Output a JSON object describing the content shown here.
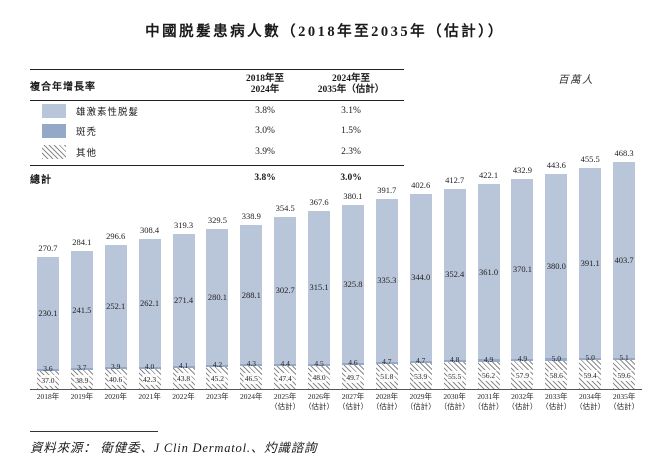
{
  "title": "中國脱髮患病人數（2018年至2035年（估計））",
  "unit_label": "百萬人",
  "colors": {
    "bar_light": "#b9c5d8",
    "bar_dark": "#94a8c7",
    "hatch_line": "#8a8a8a",
    "axis": "#555555"
  },
  "cagr_table": {
    "header": {
      "label": "複合年增長率",
      "col1": {
        "line1": "2018年至",
        "line2": "2024年"
      },
      "col2": {
        "line1": "2024年至",
        "line2": "2035年（估計）"
      }
    },
    "rows": [
      {
        "label": "雄激素性脱髮",
        "col1": "3.8%",
        "col2": "3.1%"
      },
      {
        "label": "斑禿",
        "col1": "3.0%",
        "col2": "1.5%"
      },
      {
        "label": "其他",
        "col1": "3.9%",
        "col2": "2.3%"
      }
    ],
    "total_row": {
      "label": "總計",
      "col1": "3.8%",
      "col2": "3.0%"
    }
  },
  "chart_data": {
    "type": "bar",
    "stacked": true,
    "title": "中國脱髮患病人數（2018年至2035年（估計））",
    "ylabel": "百萬人",
    "ylim": [
      0,
      480
    ],
    "grid": false,
    "legend_position": "top-left-table",
    "categories": [
      "2018年",
      "2019年",
      "2020年",
      "2021年",
      "2022年",
      "2023年",
      "2024年",
      "2025年",
      "2026年",
      "2027年",
      "2028年",
      "2029年",
      "2030年",
      "2031年",
      "2032年",
      "2033年",
      "2034年",
      "2035年"
    ],
    "estimate_from_index": 7,
    "estimate_label": "（估計）",
    "series": [
      {
        "name": "雄激素性脱髮",
        "values": [
          230.1,
          241.5,
          252.1,
          262.1,
          271.4,
          280.1,
          288.1,
          302.7,
          315.1,
          325.8,
          335.3,
          344.0,
          352.4,
          361.0,
          370.1,
          380.0,
          391.1,
          403.7
        ]
      },
      {
        "name": "斑禿",
        "values": [
          3.6,
          3.7,
          3.9,
          4.0,
          4.1,
          4.2,
          4.3,
          4.4,
          4.5,
          4.6,
          4.7,
          4.7,
          4.8,
          4.9,
          4.9,
          5.0,
          5.0,
          5.1
        ]
      },
      {
        "name": "其他",
        "values": [
          37.0,
          38.9,
          40.6,
          42.3,
          43.8,
          45.2,
          46.5,
          47.4,
          48.0,
          49.7,
          51.8,
          53.9,
          55.5,
          56.2,
          57.9,
          58.6,
          59.4,
          59.6
        ]
      }
    ],
    "totals": [
      270.7,
      284.1,
      296.6,
      308.4,
      319.3,
      329.5,
      338.9,
      354.5,
      367.6,
      380.1,
      391.7,
      402.6,
      412.7,
      422.1,
      432.9,
      443.6,
      455.5,
      468.3
    ]
  },
  "source_note": "資料來源： 衛健委、J Clin Dermatol.、灼識諮詢"
}
